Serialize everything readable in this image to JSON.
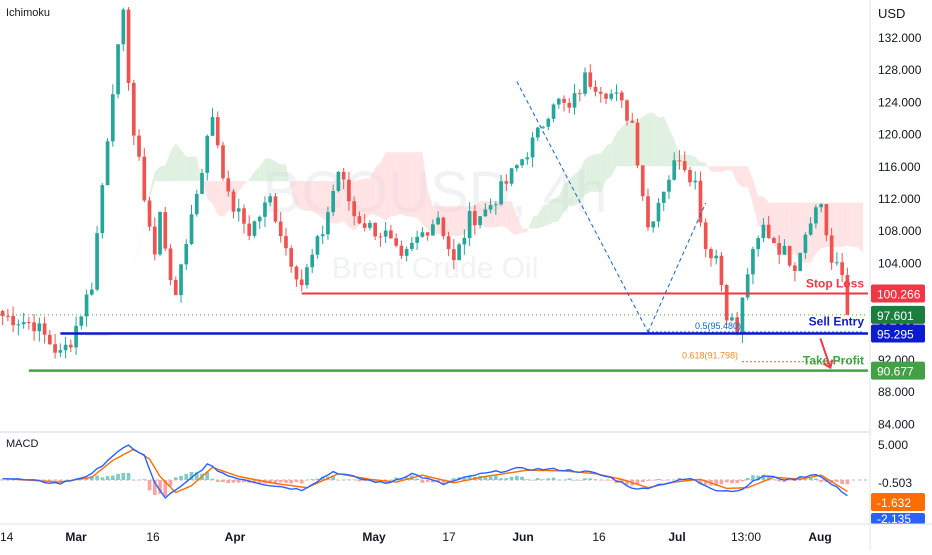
{
  "main_label": "Ichimoku",
  "macd_label": "MACD",
  "currency": "USD",
  "watermark": {
    "symbol": "BCOUSD, 4h",
    "name": "Brent Crude Oil"
  },
  "colors": {
    "up": "#26a69a",
    "down": "#ef5350",
    "stop": "#f23645",
    "entry": "#0b1bd0",
    "profit": "#43a047",
    "fib": "#f28c28",
    "blue_label": "#1565c0",
    "macd_line": "#2962ff",
    "signal_line": "#ff6d00",
    "cloud_green": "#c8e6c9",
    "cloud_red": "#ffcdd2"
  },
  "chart_data": [
    {
      "type": "candlestick",
      "timeframe": "4h",
      "ylim": [
        84,
        136
      ],
      "y_ticks": [
        "132.000",
        "128.000",
        "124.000",
        "120.000",
        "116.000",
        "112.000",
        "108.000",
        "104.000",
        "100.000",
        "96.000",
        "92.000",
        "88.000",
        "84.000"
      ],
      "x_ticks": [
        "14",
        "Mar",
        "16",
        "Apr",
        "May",
        "17",
        "Jun",
        "16",
        "Jul",
        "13:00",
        "Aug"
      ],
      "price_path": [
        [
          0,
          97.5
        ],
        [
          6,
          96.5
        ],
        [
          11,
          92.6
        ],
        [
          13,
          94.5
        ],
        [
          17,
          101.5
        ],
        [
          21,
          126
        ],
        [
          23,
          134.5
        ],
        [
          25,
          120
        ],
        [
          29,
          105
        ],
        [
          30,
          110
        ],
        [
          33,
          99
        ],
        [
          34,
          104
        ],
        [
          38,
          116
        ],
        [
          40,
          122.5
        ],
        [
          43,
          112
        ],
        [
          47,
          108
        ],
        [
          51,
          112
        ],
        [
          54,
          106
        ],
        [
          57,
          101.5
        ],
        [
          61,
          108
        ],
        [
          64,
          115.5
        ],
        [
          67,
          110
        ],
        [
          70,
          108.5
        ],
        [
          73,
          107.5
        ],
        [
          76,
          104
        ],
        [
          79,
          107
        ],
        [
          83,
          110
        ],
        [
          86,
          104
        ],
        [
          89,
          109.5
        ],
        [
          92,
          110.5
        ],
        [
          96,
          114
        ],
        [
          99,
          117
        ],
        [
          102,
          120
        ],
        [
          105,
          124.5
        ],
        [
          108,
          123
        ],
        [
          111,
          127
        ],
        [
          114,
          126
        ],
        [
          117,
          124.5
        ],
        [
          120,
          121.5
        ],
        [
          123,
          108.5
        ],
        [
          126,
          113.5
        ],
        [
          129,
          117.5
        ],
        [
          132,
          114
        ],
        [
          134,
          106
        ],
        [
          136,
          105
        ],
        [
          138,
          98
        ],
        [
          140,
          95.48
        ],
        [
          142,
          103
        ],
        [
          145,
          108.5
        ],
        [
          148,
          106
        ],
        [
          151,
          104
        ],
        [
          154,
          110
        ],
        [
          156,
          111.5
        ],
        [
          158,
          104
        ],
        [
          160,
          102.5
        ],
        [
          161,
          97.601
        ]
      ],
      "current_price": "97.601",
      "levels": [
        {
          "name": "Stop Loss",
          "value": "100.266"
        },
        {
          "name": "Sell Entry",
          "value": "95.295"
        },
        {
          "name": "Take Profit",
          "value": "90.677"
        }
      ],
      "fib_labels": [
        {
          "ratio": 0.5,
          "text": "0.5(95.480)"
        },
        {
          "ratio": 0.618,
          "text": "0.618(91.798)"
        }
      ]
    },
    {
      "type": "line",
      "title": "MACD",
      "ylim": [
        -3,
        6
      ],
      "y_ticks": [
        "5.000"
      ],
      "series": [
        {
          "values_path": [
            [
              0,
              0.3
            ],
            [
              11,
              -0.5
            ],
            [
              17,
              0.8
            ],
            [
              21,
              3.5
            ],
            [
              24,
              4.9
            ],
            [
              27,
              3.5
            ],
            [
              29,
              -0.5
            ],
            [
              31,
              -2.5
            ],
            [
              34,
              -1
            ],
            [
              39,
              2.2
            ],
            [
              43,
              0.6
            ],
            [
              50,
              -0.6
            ],
            [
              57,
              -1.4
            ],
            [
              63,
              1.2
            ],
            [
              68,
              0.2
            ],
            [
              73,
              -0.5
            ],
            [
              78,
              0.9
            ],
            [
              84,
              -0.6
            ],
            [
              90,
              0.7
            ],
            [
              98,
              1.6
            ],
            [
              106,
              1.5
            ],
            [
              112,
              1.1
            ],
            [
              116,
              0.3
            ],
            [
              121,
              -1.4
            ],
            [
              126,
              -0.5
            ],
            [
              131,
              0.2
            ],
            [
              136,
              -1.4
            ],
            [
              140,
              -1.6
            ],
            [
              145,
              0.6
            ],
            [
              150,
              0
            ],
            [
              155,
              0.9
            ],
            [
              161,
              -2.135
            ]
          ],
          "last_value": "-2.135"
        },
        {
          "values_path": [
            [
              0,
              0.2
            ],
            [
              11,
              -0.3
            ],
            [
              17,
              0.4
            ],
            [
              21,
              2.8
            ],
            [
              25,
              4.4
            ],
            [
              28,
              3
            ],
            [
              30,
              0.5
            ],
            [
              33,
              -1.8
            ],
            [
              36,
              -0.8
            ],
            [
              40,
              1.8
            ],
            [
              45,
              0.5
            ],
            [
              52,
              -0.5
            ],
            [
              58,
              -1.1
            ],
            [
              64,
              0.9
            ],
            [
              70,
              0.1
            ],
            [
              75,
              -0.3
            ],
            [
              80,
              0.7
            ],
            [
              86,
              -0.4
            ],
            [
              92,
              0.5
            ],
            [
              100,
              1.4
            ],
            [
              107,
              1.3
            ],
            [
              113,
              0.9
            ],
            [
              118,
              0.1
            ],
            [
              123,
              -1.1
            ],
            [
              128,
              -0.3
            ],
            [
              133,
              0.1
            ],
            [
              138,
              -1.2
            ],
            [
              142,
              -1.1
            ],
            [
              147,
              0.4
            ],
            [
              152,
              0.1
            ],
            [
              156,
              0.7
            ],
            [
              161,
              -1.632
            ]
          ],
          "last_value": "-1.632"
        },
        {
          "name": "histogram",
          "last_value": "-0.503"
        }
      ]
    }
  ]
}
